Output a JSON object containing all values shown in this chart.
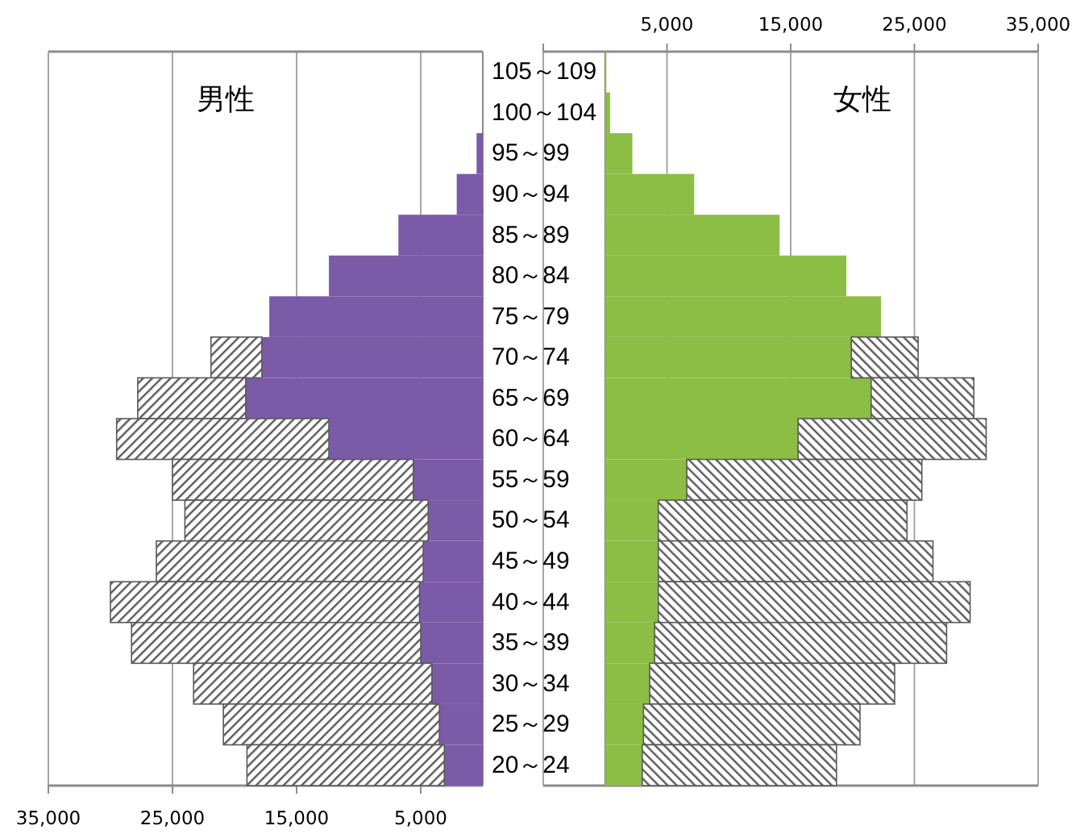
{
  "chart_data": [
    {
      "type": "bar",
      "title": "男性",
      "orientation": "horizontal",
      "stacked": true,
      "categories": [
        null,
        null,
        null,
        null,
        null,
        null,
        null,
        null,
        null,
        null,
        null,
        null,
        null,
        null,
        null,
        null,
        null,
        null
      ],
      "series": [
        {
          "color": "#7b5aa8",
          "values": [
            0,
            0,
            500,
            2100,
            6800,
            12400,
            17200,
            17800,
            19100,
            12400,
            5600,
            4400,
            4800,
            5100,
            5000,
            4100,
            3500,
            3100
          ]
        },
        {
          "color": "#595959",
          "values": [
            0,
            0,
            0,
            0,
            0,
            0,
            0,
            4100,
            8700,
            17100,
            19400,
            19600,
            21500,
            24900,
            23300,
            19200,
            17400,
            15900
          ]
        }
      ],
      "xlim": [
        35000,
        0
      ],
      "xticks": [
        {
          "value": 35000,
          "label": "35,000"
        },
        {
          "value": 25000,
          "label": "25,000"
        },
        {
          "value": 15000,
          "label": "15,000"
        },
        {
          "value": 5000,
          "label": "5,000"
        }
      ],
      "grid": "x",
      "tick_labels": "x"
    },
    {
      "type": "bar",
      "title": "女性",
      "orientation": "horizontal",
      "stacked": true,
      "categories": [
        "105～109",
        "100～104",
        "95～99",
        "90～94",
        "85～89",
        "80～84",
        "75～79",
        "70～74",
        "65～69",
        "60～64",
        "55～59",
        "50～54",
        "45～49",
        "40～44",
        "35～39",
        "30～34",
        "25～29",
        "20～24"
      ],
      "series": [
        {
          "color": "#8cbd45",
          "values": [
            100,
            400,
            2200,
            7200,
            14100,
            19500,
            22300,
            19900,
            21500,
            15600,
            6600,
            4300,
            4300,
            4300,
            4000,
            3600,
            3100,
            3000
          ]
        },
        {
          "color": "#595959",
          "values": [
            0,
            0,
            0,
            0,
            0,
            0,
            0,
            5400,
            8300,
            15200,
            19000,
            20100,
            22200,
            25200,
            23600,
            19800,
            17500,
            15700
          ]
        }
      ],
      "xlim": [
        -5000,
        35000
      ],
      "xticks": [
        {
          "value": -5000,
          "label": null
        },
        {
          "value": 5000,
          "label": "5,000"
        },
        {
          "value": 15000,
          "label": "15,000"
        },
        {
          "value": 25000,
          "label": "25,000"
        },
        {
          "value": 35000,
          "label": "35,000"
        }
      ],
      "grid": "x"
    }
  ]
}
